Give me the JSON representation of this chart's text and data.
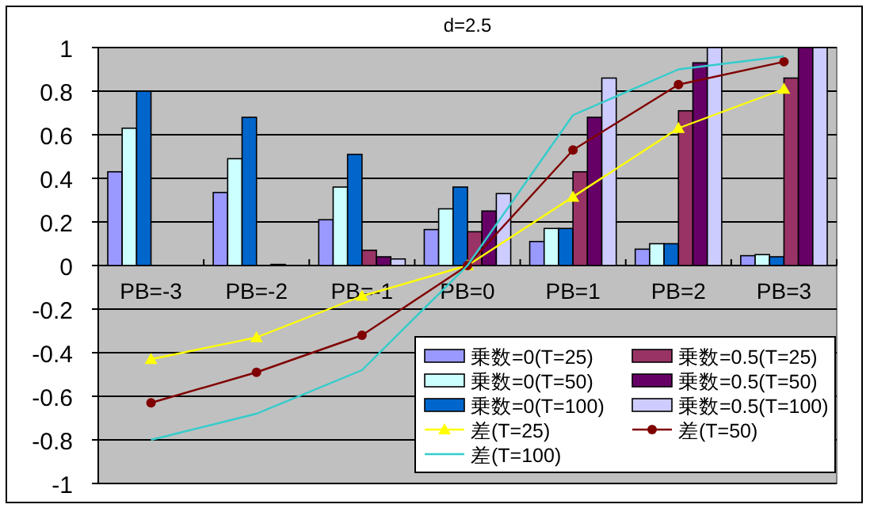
{
  "chart_data": {
    "type": "bar",
    "title": "d=2.5",
    "categories": [
      "PB=-3",
      "PB=-2",
      "PB=-1",
      "PB=0",
      "PB=1",
      "PB=2",
      "PB=3"
    ],
    "series": [
      {
        "name": "乗数=0(T=25)",
        "color": "#9999ff",
        "values": [
          0.43,
          0.335,
          0.21,
          0.165,
          0.11,
          0.075,
          0.045
        ]
      },
      {
        "name": "乗数=0(T=50)",
        "color": "#ccffff",
        "values": [
          0.63,
          0.49,
          0.36,
          0.26,
          0.17,
          0.1,
          0.05
        ]
      },
      {
        "name": "乗数=0(T=100)",
        "color": "#0066cc",
        "values": [
          0.8,
          0.68,
          0.51,
          0.36,
          0.17,
          0.1,
          0.04
        ]
      },
      {
        "name": "乗数=0.5(T=25)",
        "color": "#993366",
        "values": [
          0,
          null,
          0.07,
          0.155,
          0.43,
          0.71,
          0.86
        ]
      },
      {
        "name": "乗数=0.5(T=50)",
        "color": "#660066",
        "values": [
          0,
          0.005,
          0.04,
          0.25,
          0.68,
          0.93,
          1.0
        ]
      },
      {
        "name": "乗数=0.5(T=100)",
        "color": "#ccccff",
        "values": [
          0,
          0,
          0.03,
          0.33,
          0.86,
          1.0,
          1.0
        ]
      },
      {
        "name": "差(T=25)",
        "type": "line",
        "marker": "triangle",
        "color": "#ffff00",
        "values": [
          -0.43,
          -0.33,
          -0.14,
          0,
          0.315,
          0.63,
          0.81
        ]
      },
      {
        "name": "差(T=50)",
        "type": "line",
        "marker": "circle",
        "color": "#800000",
        "values": [
          -0.63,
          -0.49,
          -0.32,
          0,
          0.53,
          0.83,
          0.935
        ]
      },
      {
        "name": "差(T=100)",
        "type": "line",
        "marker": "none",
        "color": "#33cccc",
        "values": [
          -0.8,
          -0.68,
          -0.48,
          0,
          0.69,
          0.9,
          0.96
        ]
      }
    ],
    "ylim": [
      -1,
      1
    ],
    "yticks": [
      -1,
      -0.8,
      -0.6,
      -0.4,
      -0.2,
      0,
      0.2,
      0.4,
      0.6,
      0.8,
      1
    ],
    "grid": "y",
    "legend": "bottom right"
  }
}
